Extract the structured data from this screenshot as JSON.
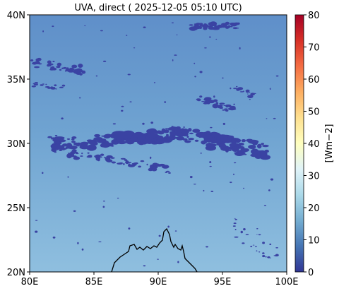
{
  "title": "UVA, direct ( 2025-12-05 05:10 UTC)",
  "map": {
    "x_ticks": [
      "80E",
      "85E",
      "90E",
      "95E",
      "100E"
    ],
    "x_values": [
      80,
      85,
      90,
      95,
      100
    ],
    "y_ticks": [
      "20N",
      "25N",
      "30N",
      "35N",
      "40N"
    ],
    "y_values": [
      20,
      25,
      30,
      35,
      40
    ],
    "lon_range": [
      80,
      100
    ],
    "lat_range": [
      20,
      40
    ],
    "field": "UVA direct irradiance",
    "background_level_north": 17,
    "background_level_south": 23,
    "cloud_level": 2
  },
  "colorbar": {
    "label": "[Wm−2]",
    "ticks": [
      "0",
      "10",
      "20",
      "30",
      "40",
      "50",
      "60",
      "70",
      "80"
    ],
    "values": [
      0,
      10,
      20,
      30,
      40,
      50,
      60,
      70,
      80
    ],
    "range": [
      0,
      80
    ],
    "colormap": "RdYlBu_r"
  },
  "colors": {
    "cloud": "#3a43a3",
    "coastline": "#000000"
  }
}
